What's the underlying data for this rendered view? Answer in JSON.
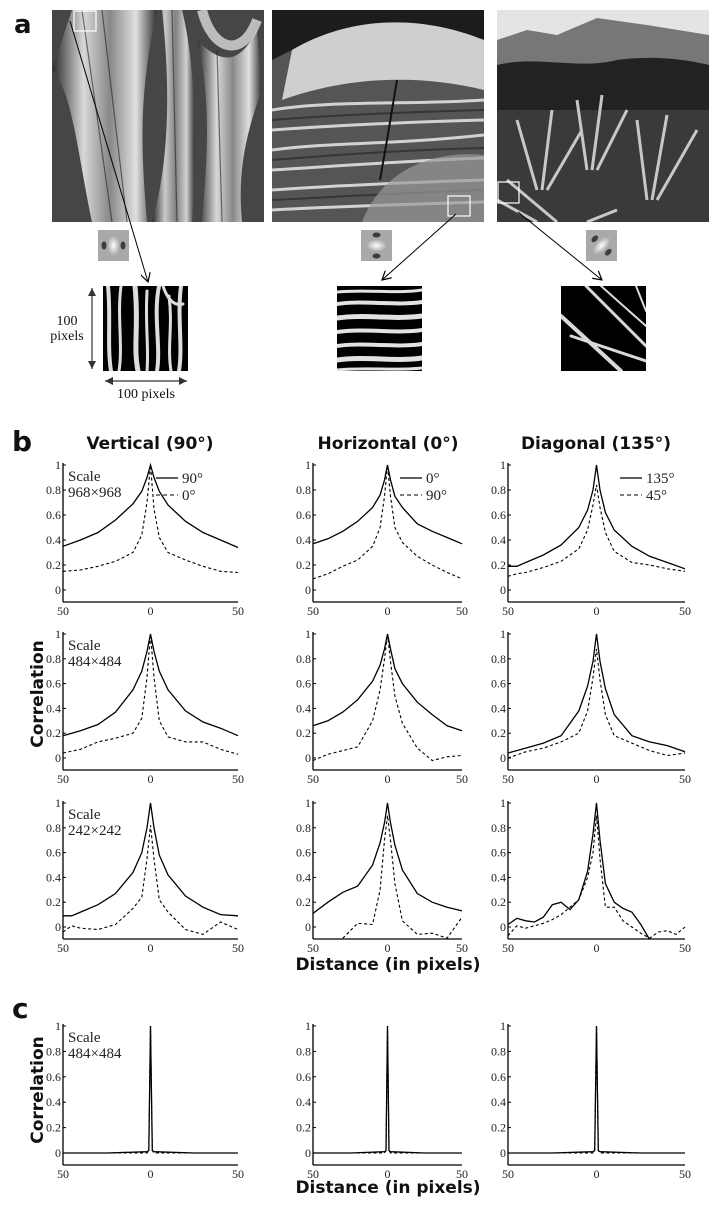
{
  "panels": {
    "a": {
      "letter": "a",
      "images": [
        {
          "name": "tree-bark",
          "filter_orientation": "vertical"
        },
        {
          "name": "rock-strata",
          "filter_orientation": "horizontal"
        },
        {
          "name": "agave-plants",
          "filter_orientation": "diagonal"
        }
      ],
      "patch_height_label_line1": "100",
      "patch_height_label_line2": "pixels",
      "patch_width_label": "100 pixels"
    },
    "b": {
      "letter": "b",
      "column_titles": [
        "Vertical (90°)",
        "Horizontal (0°)",
        "Diagonal (135°)"
      ],
      "ylabel": "Correlation",
      "xlabel": "Distance (in pixels)",
      "legends": [
        {
          "solid": "90°",
          "dashed": "0°"
        },
        {
          "solid": "0°",
          "dashed": "90°"
        },
        {
          "solid": "135°",
          "dashed": "45°"
        }
      ],
      "scale_labels": [
        {
          "line1": "Scale",
          "line2": "968×968"
        },
        {
          "line1": "Scale",
          "line2": "484×484"
        },
        {
          "line1": "Scale",
          "line2": "242×242"
        }
      ]
    },
    "c": {
      "letter": "c",
      "ylabel": "Correlation",
      "xlabel": "Distance (in pixels)",
      "scale_label": {
        "line1": "Scale",
        "line2": "484×484"
      }
    }
  },
  "chart_data": [
    {
      "type": "line",
      "panel": "b",
      "row": 1,
      "column": "Vertical (90°)",
      "scale": "968×968",
      "xlabel": "Distance (in pixels)",
      "ylabel": "Correlation",
      "xlim": [
        -50,
        50
      ],
      "ylim": [
        -0.1,
        1
      ],
      "xticks": [
        "50",
        "0",
        "50"
      ],
      "yticks": [
        "0",
        "0.2",
        "0.4",
        "0.6",
        "0.8",
        "1"
      ],
      "x": [
        -50,
        -40,
        -30,
        -20,
        -10,
        -5,
        -2,
        0,
        2,
        5,
        10,
        20,
        30,
        40,
        50
      ],
      "series": [
        {
          "name": "90°",
          "style": "solid",
          "values": [
            0.35,
            0.4,
            0.46,
            0.56,
            0.69,
            0.79,
            0.9,
            1.0,
            0.9,
            0.79,
            0.68,
            0.55,
            0.46,
            0.4,
            0.34
          ]
        },
        {
          "name": "0°",
          "style": "dashed",
          "values": [
            0.15,
            0.16,
            0.19,
            0.23,
            0.3,
            0.44,
            0.7,
            1.0,
            0.65,
            0.42,
            0.3,
            0.24,
            0.19,
            0.15,
            0.14
          ]
        }
      ]
    },
    {
      "type": "line",
      "panel": "b",
      "row": 1,
      "column": "Horizontal (0°)",
      "scale": "968×968",
      "xlim": [
        -50,
        50
      ],
      "ylim": [
        -0.1,
        1
      ],
      "xticks": [
        "50",
        "0",
        "50"
      ],
      "yticks": [
        "0",
        "0.2",
        "0.4",
        "0.6",
        "0.8",
        "1"
      ],
      "x": [
        -50,
        -40,
        -30,
        -20,
        -10,
        -5,
        -2,
        0,
        2,
        5,
        10,
        20,
        30,
        40,
        50
      ],
      "series": [
        {
          "name": "0°",
          "style": "solid",
          "values": [
            0.37,
            0.41,
            0.47,
            0.55,
            0.66,
            0.76,
            0.88,
            1.0,
            0.88,
            0.75,
            0.66,
            0.53,
            0.47,
            0.42,
            0.37
          ]
        },
        {
          "name": "90°",
          "style": "dashed",
          "values": [
            0.09,
            0.13,
            0.19,
            0.24,
            0.35,
            0.5,
            0.75,
            1.0,
            0.75,
            0.5,
            0.38,
            0.27,
            0.2,
            0.14,
            0.09
          ]
        }
      ]
    },
    {
      "type": "line",
      "panel": "b",
      "row": 1,
      "column": "Diagonal (135°)",
      "scale": "968×968",
      "xlim": [
        -50,
        50
      ],
      "ylim": [
        -0.1,
        1
      ],
      "xticks": [
        "50",
        "0",
        "50"
      ],
      "yticks": [
        "0",
        "0.2",
        "0.4",
        "0.6",
        "0.8",
        "1"
      ],
      "x": [
        -50,
        -45,
        -40,
        -30,
        -20,
        -10,
        -5,
        -2,
        0,
        2,
        5,
        10,
        20,
        30,
        40,
        50
      ],
      "series": [
        {
          "name": "135°",
          "style": "solid",
          "values": [
            0.19,
            0.19,
            0.22,
            0.28,
            0.36,
            0.5,
            0.64,
            0.8,
            1.0,
            0.8,
            0.62,
            0.48,
            0.35,
            0.27,
            0.22,
            0.17
          ]
        },
        {
          "name": "45°",
          "style": "dashed",
          "values": [
            0.11,
            0.13,
            0.14,
            0.18,
            0.23,
            0.33,
            0.48,
            0.68,
            0.84,
            0.66,
            0.46,
            0.31,
            0.22,
            0.2,
            0.17,
            0.15
          ]
        }
      ]
    },
    {
      "type": "line",
      "panel": "b",
      "row": 2,
      "column": "Vertical (90°)",
      "scale": "484×484",
      "xlim": [
        -50,
        50
      ],
      "ylim": [
        -0.1,
        1
      ],
      "xticks": [
        "50",
        "0",
        "50"
      ],
      "yticks": [
        "0",
        "0.2",
        "0.4",
        "0.6",
        "0.8",
        "1"
      ],
      "x": [
        -50,
        -40,
        -30,
        -20,
        -10,
        -5,
        -2,
        0,
        2,
        5,
        10,
        20,
        30,
        40,
        50
      ],
      "series": [
        {
          "name": "90°",
          "style": "solid",
          "values": [
            0.18,
            0.22,
            0.27,
            0.37,
            0.55,
            0.7,
            0.86,
            1.0,
            0.86,
            0.7,
            0.55,
            0.38,
            0.29,
            0.24,
            0.18
          ]
        },
        {
          "name": "0°",
          "style": "dashed",
          "values": [
            0.04,
            0.07,
            0.13,
            0.16,
            0.2,
            0.32,
            0.65,
            1.0,
            0.65,
            0.3,
            0.17,
            0.13,
            0.13,
            0.07,
            0.03
          ]
        }
      ]
    },
    {
      "type": "line",
      "panel": "b",
      "row": 2,
      "column": "Horizontal (0°)",
      "scale": "484×484",
      "xlim": [
        -50,
        50
      ],
      "ylim": [
        -0.1,
        1
      ],
      "xticks": [
        "50",
        "0",
        "50"
      ],
      "yticks": [
        "0",
        "0.2",
        "0.4",
        "0.6",
        "0.8",
        "1"
      ],
      "x": [
        -50,
        -40,
        -30,
        -20,
        -10,
        -5,
        -2,
        0,
        2,
        5,
        10,
        20,
        30,
        40,
        50
      ],
      "series": [
        {
          "name": "0°",
          "style": "solid",
          "values": [
            0.26,
            0.3,
            0.37,
            0.47,
            0.62,
            0.75,
            0.88,
            1.0,
            0.88,
            0.72,
            0.6,
            0.45,
            0.35,
            0.26,
            0.22
          ]
        },
        {
          "name": "90°",
          "style": "dashed",
          "values": [
            -0.02,
            0.03,
            0.06,
            0.09,
            0.3,
            0.55,
            0.8,
            1.0,
            0.78,
            0.5,
            0.28,
            0.08,
            -0.02,
            0.01,
            0.02
          ]
        }
      ]
    },
    {
      "type": "line",
      "panel": "b",
      "row": 2,
      "column": "Diagonal (135°)",
      "scale": "484×484",
      "xlim": [
        -50,
        50
      ],
      "ylim": [
        -0.1,
        1
      ],
      "xticks": [
        "50",
        "0",
        "50"
      ],
      "yticks": [
        "0",
        "0.2",
        "0.4",
        "0.6",
        "0.8",
        "1"
      ],
      "x": [
        -50,
        -40,
        -30,
        -20,
        -10,
        -5,
        -2,
        0,
        2,
        5,
        10,
        20,
        30,
        40,
        50
      ],
      "series": [
        {
          "name": "135°",
          "style": "solid",
          "values": [
            0.04,
            0.08,
            0.12,
            0.18,
            0.38,
            0.58,
            0.78,
            1.0,
            0.78,
            0.56,
            0.35,
            0.18,
            0.13,
            0.1,
            0.05
          ]
        },
        {
          "name": "45°",
          "style": "dashed",
          "values": [
            0.0,
            0.05,
            0.08,
            0.13,
            0.2,
            0.38,
            0.65,
            0.88,
            0.63,
            0.35,
            0.18,
            0.12,
            0.06,
            0.02,
            0.04
          ]
        }
      ]
    },
    {
      "type": "line",
      "panel": "b",
      "row": 3,
      "column": "Vertical (90°)",
      "scale": "242×242",
      "xlim": [
        -50,
        50
      ],
      "ylim": [
        -0.1,
        1
      ],
      "xticks": [
        "50",
        "0",
        "50"
      ],
      "yticks": [
        "0",
        "0.2",
        "0.4",
        "0.6",
        "0.8",
        "1"
      ],
      "x": [
        -50,
        -45,
        -40,
        -30,
        -20,
        -10,
        -5,
        -2,
        0,
        2,
        5,
        10,
        20,
        30,
        40,
        50
      ],
      "series": [
        {
          "name": "90°",
          "style": "solid",
          "values": [
            0.09,
            0.09,
            0.12,
            0.18,
            0.27,
            0.44,
            0.6,
            0.8,
            1.0,
            0.8,
            0.58,
            0.42,
            0.25,
            0.16,
            0.1,
            0.09
          ]
        },
        {
          "name": "0°",
          "style": "dashed",
          "values": [
            -0.04,
            0.01,
            -0.01,
            -0.02,
            0.02,
            0.15,
            0.24,
            0.55,
            0.82,
            0.55,
            0.22,
            0.12,
            -0.02,
            -0.06,
            0.04,
            -0.02
          ]
        }
      ]
    },
    {
      "type": "line",
      "panel": "b",
      "row": 3,
      "column": "Horizontal (0°)",
      "scale": "242×242",
      "xlim": [
        -50,
        50
      ],
      "ylim": [
        -0.1,
        1
      ],
      "xticks": [
        "50",
        "0",
        "50"
      ],
      "yticks": [
        "0",
        "0.2",
        "0.4",
        "0.6",
        "0.8",
        "1"
      ],
      "x": [
        -50,
        -40,
        -30,
        -20,
        -10,
        -5,
        -2,
        0,
        2,
        5,
        10,
        20,
        30,
        40,
        50
      ],
      "series": [
        {
          "name": "0°",
          "style": "solid",
          "values": [
            0.11,
            0.2,
            0.28,
            0.33,
            0.5,
            0.68,
            0.84,
            1.0,
            0.84,
            0.66,
            0.46,
            0.27,
            0.2,
            0.16,
            0.13
          ]
        },
        {
          "name": "90°",
          "style": "dashed",
          "values": [
            null,
            null,
            -0.09,
            0.03,
            0.02,
            0.3,
            0.7,
            0.9,
            0.7,
            0.35,
            0.05,
            -0.06,
            -0.05,
            -0.09,
            0.08
          ]
        }
      ]
    },
    {
      "type": "line",
      "panel": "b",
      "row": 3,
      "column": "Diagonal (135°)",
      "scale": "242×242",
      "xlim": [
        -50,
        50
      ],
      "ylim": [
        -0.1,
        1
      ],
      "xticks": [
        "50",
        "0",
        "50"
      ],
      "yticks": [
        "0",
        "0.2",
        "0.4",
        "0.6",
        "0.8",
        "1"
      ],
      "x": [
        -50,
        -45,
        -40,
        -35,
        -30,
        -25,
        -20,
        -15,
        -10,
        -5,
        -2,
        0,
        2,
        5,
        10,
        15,
        20,
        25,
        30,
        35,
        40,
        45,
        50
      ],
      "series": [
        {
          "name": "135°",
          "style": "solid",
          "values": [
            0.02,
            0.07,
            0.05,
            0.04,
            0.08,
            0.18,
            0.2,
            0.14,
            0.22,
            0.45,
            0.75,
            1.0,
            0.7,
            0.35,
            0.2,
            0.15,
            0.12,
            0.02,
            -0.1,
            null,
            null,
            null,
            null
          ]
        },
        {
          "name": "45°",
          "style": "dashed",
          "values": [
            -0.07,
            0.01,
            -0.01,
            0.01,
            0.03,
            0.06,
            0.1,
            0.16,
            0.22,
            0.4,
            0.6,
            0.9,
            0.55,
            0.16,
            0.16,
            0.05,
            0.0,
            -0.05,
            -0.09,
            -0.04,
            -0.03,
            -0.06,
            0.0
          ]
        }
      ]
    },
    {
      "type": "line",
      "panel": "c",
      "column": 1,
      "scale": "484×484",
      "xlabel": "Distance (in pixels)",
      "ylabel": "Correlation",
      "xlim": [
        -50,
        50
      ],
      "ylim": [
        -0.1,
        1
      ],
      "xticks": [
        "50",
        "0",
        "50"
      ],
      "yticks": [
        "0",
        "0.2",
        "0.4",
        "0.6",
        "0.8",
        "1"
      ],
      "x": [
        -50,
        -25,
        -2,
        -1,
        0,
        1,
        2,
        25,
        50
      ],
      "series": [
        {
          "name": "solid",
          "style": "solid",
          "values": [
            0.0,
            0.0,
            0.01,
            0.02,
            1.0,
            0.02,
            0.01,
            0.0,
            0.0
          ]
        },
        {
          "name": "dashed",
          "style": "dashed",
          "values": [
            0.0,
            0.0,
            0.0,
            0.02,
            1.0,
            0.02,
            0.0,
            0.0,
            0.0
          ]
        }
      ]
    },
    {
      "type": "line",
      "panel": "c",
      "column": 2,
      "xlim": [
        -50,
        50
      ],
      "ylim": [
        -0.1,
        1
      ],
      "xticks": [
        "50",
        "0",
        "50"
      ],
      "yticks": [
        "0",
        "0.2",
        "0.4",
        "0.6",
        "0.8",
        "1"
      ],
      "x": [
        -50,
        -25,
        -2,
        -1,
        0,
        1,
        2,
        25,
        50
      ],
      "series": [
        {
          "name": "solid",
          "style": "solid",
          "values": [
            0.0,
            0.0,
            0.01,
            0.02,
            1.0,
            0.02,
            0.01,
            0.0,
            0.0
          ]
        },
        {
          "name": "dashed",
          "style": "dashed",
          "values": [
            0.0,
            0.0,
            0.0,
            0.02,
            1.0,
            0.02,
            0.0,
            0.0,
            0.0
          ]
        }
      ]
    },
    {
      "type": "line",
      "panel": "c",
      "column": 3,
      "xlim": [
        -50,
        50
      ],
      "ylim": [
        -0.1,
        1
      ],
      "xticks": [
        "50",
        "0",
        "50"
      ],
      "yticks": [
        "0",
        "0.2",
        "0.4",
        "0.6",
        "0.8",
        "1"
      ],
      "x": [
        -50,
        -25,
        -2,
        -1,
        0,
        1,
        2,
        25,
        50
      ],
      "series": [
        {
          "name": "solid",
          "style": "solid",
          "values": [
            0.0,
            0.0,
            0.01,
            0.02,
            1.0,
            0.02,
            0.01,
            0.0,
            0.0
          ]
        },
        {
          "name": "dashed",
          "style": "dashed",
          "values": [
            0.0,
            0.0,
            0.0,
            0.02,
            1.0,
            0.02,
            0.0,
            0.0,
            0.0
          ]
        }
      ]
    }
  ]
}
